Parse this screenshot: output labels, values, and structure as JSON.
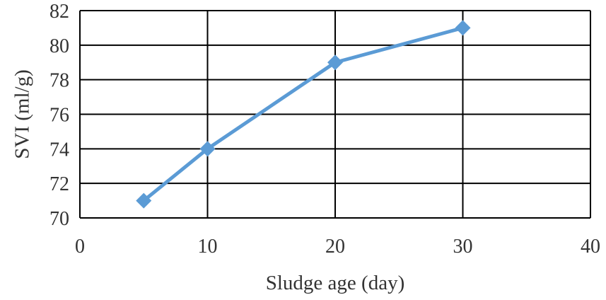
{
  "chart_data": {
    "type": "line",
    "title": "",
    "xlabel": "Sludge age (day)",
    "ylabel": "SVI (ml/g)",
    "xlim": [
      0,
      40
    ],
    "ylim": [
      70,
      82
    ],
    "x_ticks": [
      0,
      10,
      20,
      30,
      40
    ],
    "y_ticks": [
      70,
      72,
      74,
      76,
      78,
      80,
      82
    ],
    "grid": true,
    "legend": "none",
    "series": [
      {
        "x": [
          5,
          10,
          20,
          30
        ],
        "y": [
          71,
          74,
          79,
          81
        ],
        "color": "#5b9bd5",
        "marker": "diamond"
      }
    ]
  }
}
